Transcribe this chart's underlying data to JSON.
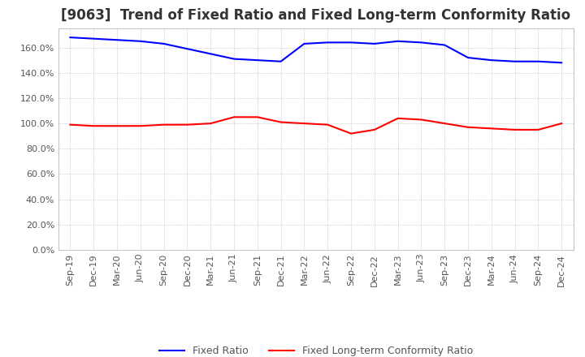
{
  "title": "[9063]  Trend of Fixed Ratio and Fixed Long-term Conformity Ratio",
  "x_labels": [
    "Sep-19",
    "Dec-19",
    "Mar-20",
    "Jun-20",
    "Sep-20",
    "Dec-20",
    "Mar-21",
    "Jun-21",
    "Sep-21",
    "Dec-21",
    "Mar-22",
    "Jun-22",
    "Sep-22",
    "Dec-22",
    "Mar-23",
    "Jun-23",
    "Sep-23",
    "Dec-23",
    "Mar-24",
    "Jun-24",
    "Sep-24",
    "Dec-24"
  ],
  "fixed_ratio": [
    168,
    167,
    166,
    165,
    163,
    159,
    155,
    151,
    150,
    149,
    163,
    164,
    164,
    163,
    165,
    164,
    162,
    152,
    150,
    149,
    149,
    148
  ],
  "fixed_lt_ratio": [
    99,
    98,
    98,
    98,
    99,
    99,
    100,
    105,
    105,
    101,
    100,
    99,
    92,
    95,
    104,
    103,
    100,
    97,
    96,
    95,
    95,
    100
  ],
  "fixed_ratio_color": "#0000FF",
  "fixed_lt_ratio_color": "#FF0000",
  "ylim_min": 0,
  "ylim_max": 175,
  "yticks": [
    0,
    20,
    40,
    60,
    80,
    100,
    120,
    140,
    160
  ],
  "background_color": "#FFFFFF",
  "plot_bg_color": "#FFFFFF",
  "grid_color": "#AAAAAA",
  "title_fontsize": 12,
  "tick_fontsize": 8,
  "legend_fontsize": 9
}
